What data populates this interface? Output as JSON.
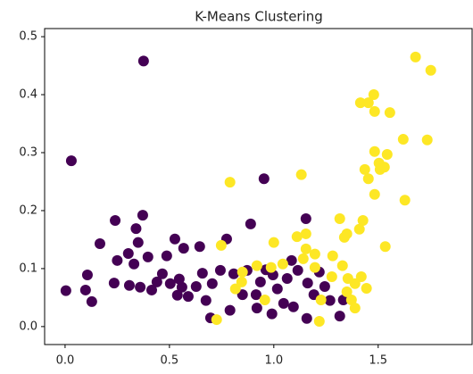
{
  "chart_data": {
    "type": "scatter",
    "title": "K-Means Clustering",
    "xlim": [
      -0.098,
      1.95
    ],
    "ylim": [
      -0.031,
      0.514
    ],
    "xticks": [
      {
        "value": 0,
        "label": "0.0"
      },
      0.5,
      {
        "value": 1,
        "label": "1.0"
      },
      1.5
    ],
    "yticks": [
      {
        "value": 0,
        "label": "0.0"
      },
      0.1,
      0.2,
      0.3,
      0.4,
      0.5
    ],
    "series": [
      {
        "color": "#440154",
        "x": [
          0.376,
          0.03,
          0.953,
          0.24,
          0.372,
          0.34,
          0.167,
          0.25,
          0.35,
          0.526,
          0.487,
          0.397,
          0.33,
          0.303,
          0.107,
          0.004,
          0.098,
          0.128,
          0.235,
          0.308,
          0.36,
          0.415,
          0.44,
          0.504,
          0.56,
          0.59,
          0.628,
          0.658,
          0.705,
          0.744,
          0.774,
          0.675,
          0.645,
          0.568,
          0.889,
          0.808,
          0.872,
          0.936,
          0.962,
          0.996,
          1.017,
          1.064,
          1.085,
          1.115,
          1.154,
          1.162,
          1.192,
          1.094,
          0.991,
          0.919,
          0.79,
          0.697,
          0.538,
          1.244,
          1.269,
          1.316,
          1.333,
          1.218,
          1.047,
          1.158,
          0.85,
          0.466,
          0.547,
          0.915
        ],
        "y": [
          0.458,
          0.286,
          0.255,
          0.183,
          0.192,
          0.169,
          0.143,
          0.114,
          0.145,
          0.151,
          0.122,
          0.12,
          0.108,
          0.126,
          0.089,
          0.062,
          0.063,
          0.043,
          0.075,
          0.071,
          0.068,
          0.063,
          0.077,
          0.074,
          0.068,
          0.052,
          0.069,
          0.092,
          0.074,
          0.097,
          0.151,
          0.045,
          0.138,
          0.135,
          0.177,
          0.091,
          0.097,
          0.077,
          0.098,
          0.089,
          0.065,
          0.083,
          0.114,
          0.097,
          0.186,
          0.075,
          0.055,
          0.034,
          0.022,
          0.032,
          0.028,
          0.015,
          0.054,
          0.069,
          0.045,
          0.018,
          0.046,
          0.094,
          0.04,
          0.014,
          0.055,
          0.091,
          0.082,
          0.055
        ]
      },
      {
        "color": "#fde725",
        "x": [
          1.752,
          1.679,
          1.479,
          1.556,
          1.415,
          1.453,
          1.483,
          1.62,
          1.735,
          1.483,
          1.543,
          1.504,
          1.509,
          1.436,
          1.453,
          1.53,
          1.483,
          1.628,
          1.132,
          0.79,
          1.316,
          1.427,
          1.41,
          1.35,
          1.338,
          1.534,
          1.0,
          1.111,
          1.154,
          1.154,
          1.197,
          1.282,
          1.329,
          1.419,
          1.444,
          1.389,
          1.278,
          1.197,
          1.141,
          1.043,
          0.987,
          0.919,
          0.85,
          0.748,
          0.816,
          0.957,
          1.218,
          1.389,
          1.372,
          1.35,
          1.226,
          0.726,
          0.846,
          1.355
        ],
        "y": [
          0.442,
          0.465,
          0.4,
          0.369,
          0.386,
          0.386,
          0.371,
          0.323,
          0.322,
          0.302,
          0.297,
          0.282,
          0.271,
          0.271,
          0.255,
          0.275,
          0.228,
          0.218,
          0.262,
          0.249,
          0.186,
          0.183,
          0.168,
          0.16,
          0.154,
          0.138,
          0.145,
          0.155,
          0.16,
          0.134,
          0.125,
          0.122,
          0.105,
          0.086,
          0.066,
          0.074,
          0.086,
          0.102,
          0.117,
          0.108,
          0.102,
          0.105,
          0.094,
          0.14,
          0.065,
          0.046,
          0.009,
          0.032,
          0.046,
          0.06,
          0.046,
          0.012,
          0.077,
          0.083
        ]
      }
    ]
  }
}
